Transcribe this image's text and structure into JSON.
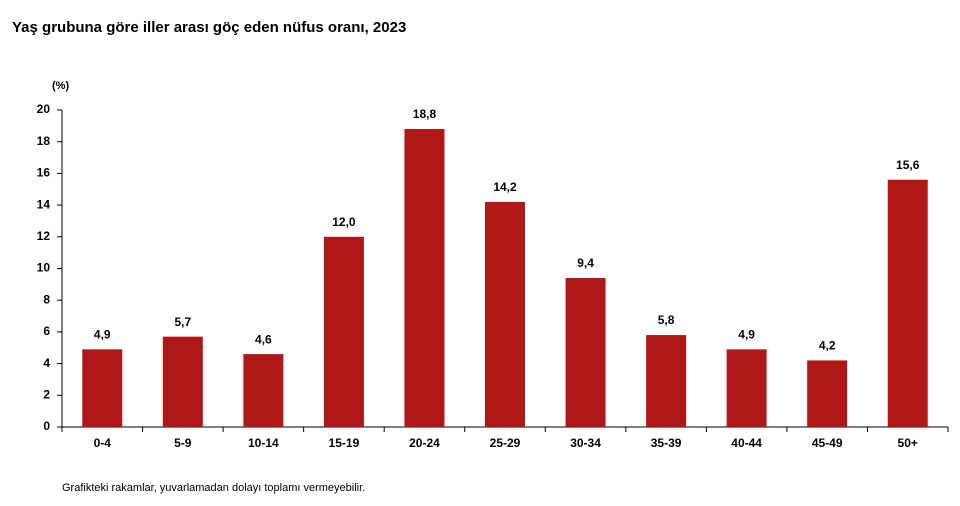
{
  "chart_data": {
    "type": "bar",
    "title": "Yaş grubuna göre iller arası göç eden nüfus oranı, 2023",
    "y_axis_label": "(%)",
    "note": "Grafikteki rakamlar, yuvarlamadan dolayı toplamı vermeyebilir.",
    "categories": [
      "0-4",
      "5-9",
      "10-14",
      "15-19",
      "20-24",
      "25-29",
      "30-34",
      "35-39",
      "40-44",
      "45-49",
      "50+"
    ],
    "values": [
      4.9,
      5.7,
      4.6,
      12.0,
      18.8,
      14.2,
      9.4,
      5.8,
      4.9,
      4.2,
      15.6
    ],
    "value_labels": [
      "4,9",
      "5,7",
      "4,6",
      "12,0",
      "18,8",
      "14,2",
      "9,4",
      "5,8",
      "4,9",
      "4,2",
      "15,6"
    ],
    "color": "#b01717",
    "ylim": [
      0,
      20
    ],
    "yticks": [
      0,
      2,
      4,
      6,
      8,
      10,
      12,
      14,
      16,
      18,
      20
    ],
    "grid": false
  }
}
